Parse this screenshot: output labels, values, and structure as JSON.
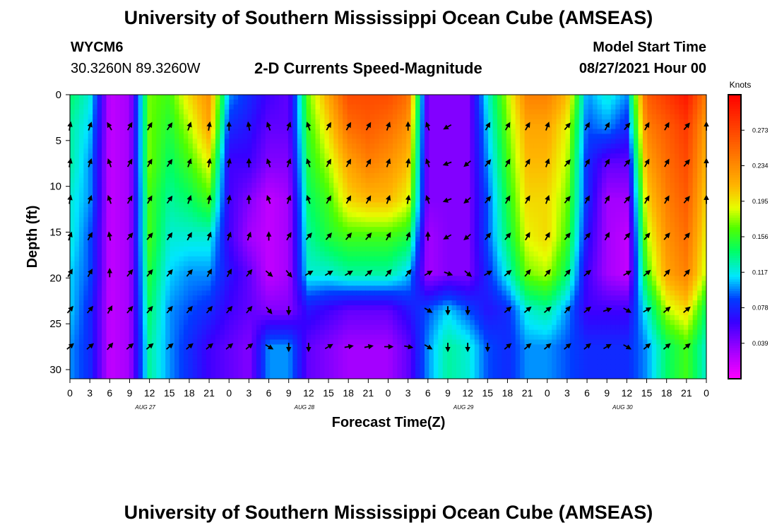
{
  "header": {
    "title_top": "University of Southern Mississippi Ocean Cube (AMSEAS)",
    "title_bottom": "University of Southern Mississippi Ocean Cube (AMSEAS)",
    "station": "WYCM6",
    "location": "30.3260N  89.3260W",
    "subtitle": "2-D Currents Speed-Magnitude",
    "model_label": "Model Start Time",
    "model_time": "08/27/2021 Hour 00"
  },
  "chart_data": {
    "type": "heatmap",
    "title": "2-D Currents Speed-Magnitude",
    "xlabel": "Forecast Time(Z)",
    "ylabel": "Depth (ft)",
    "colorbar_label": "Knots",
    "colorbar_ticks": [
      "0.273",
      "0.234",
      "0.195",
      "0.156",
      "0.117",
      "0.078",
      "0.039"
    ],
    "colorbar_values": [
      0.273,
      0.234,
      0.195,
      0.156,
      0.117,
      0.078,
      0.039
    ],
    "clim": [
      0.0,
      0.312
    ],
    "xlim": [
      0,
      96
    ],
    "ylim": [
      0,
      31
    ],
    "x_ticks": [
      0,
      3,
      6,
      9,
      12,
      15,
      18,
      21,
      24,
      27,
      30,
      33,
      36,
      39,
      42,
      45,
      48,
      51,
      54,
      57,
      60,
      63,
      66,
      69,
      72,
      75,
      78,
      81,
      84,
      87,
      90,
      93,
      96
    ],
    "x_tick_labels": [
      "0",
      "3",
      "6",
      "9",
      "12",
      "15",
      "18",
      "21",
      "0",
      "3",
      "6",
      "9",
      "12",
      "15",
      "18",
      "21",
      "0",
      "3",
      "6",
      "9",
      "12",
      "15",
      "18",
      "21",
      "0",
      "3",
      "6",
      "9",
      "12",
      "15",
      "18",
      "21",
      "0"
    ],
    "date_labels": [
      {
        "hour": 12,
        "text": "AUG 27"
      },
      {
        "hour": 36,
        "text": "AUG 28"
      },
      {
        "hour": 60,
        "text": "AUG 29"
      },
      {
        "hour": 84,
        "text": "AUG 30"
      }
    ],
    "y_ticks": [
      0,
      5,
      10,
      15,
      20,
      25,
      30
    ],
    "y_tick_labels": [
      "0",
      "5",
      "10",
      "15",
      "20",
      "25",
      "30"
    ],
    "column_hours": [
      0,
      3,
      6,
      9,
      12,
      15,
      18,
      21,
      24,
      27,
      30,
      33,
      36,
      39,
      42,
      45,
      48,
      51,
      54,
      57,
      60,
      63,
      66,
      69,
      72,
      75,
      78,
      81,
      84,
      87,
      90,
      93,
      96
    ],
    "row_depths_ft": [
      0,
      3.5,
      7.5,
      11.5,
      15.5,
      19.5,
      23.5,
      27.5,
      31
    ],
    "speed_knots": [
      [
        0.14,
        0.12,
        0.02,
        0.03,
        0.17,
        0.16,
        0.2,
        0.23,
        0.1,
        0.08,
        0.06,
        0.05,
        0.17,
        0.22,
        0.27,
        0.27,
        0.27,
        0.25,
        0.04,
        0.04,
        0.04,
        0.12,
        0.18,
        0.24,
        0.24,
        0.21,
        0.1,
        0.12,
        0.1,
        0.26,
        0.28,
        0.3,
        0.24
      ],
      [
        0.13,
        0.11,
        0.02,
        0.03,
        0.17,
        0.15,
        0.18,
        0.22,
        0.08,
        0.07,
        0.05,
        0.05,
        0.16,
        0.2,
        0.25,
        0.26,
        0.25,
        0.23,
        0.04,
        0.04,
        0.04,
        0.11,
        0.17,
        0.22,
        0.22,
        0.19,
        0.09,
        0.1,
        0.08,
        0.24,
        0.26,
        0.28,
        0.22
      ],
      [
        0.13,
        0.1,
        0.02,
        0.03,
        0.17,
        0.14,
        0.16,
        0.19,
        0.06,
        0.06,
        0.04,
        0.04,
        0.15,
        0.18,
        0.22,
        0.24,
        0.23,
        0.21,
        0.04,
        0.04,
        0.04,
        0.1,
        0.16,
        0.21,
        0.21,
        0.18,
        0.08,
        0.05,
        0.05,
        0.22,
        0.25,
        0.27,
        0.21
      ],
      [
        0.12,
        0.1,
        0.02,
        0.03,
        0.16,
        0.13,
        0.14,
        0.16,
        0.06,
        0.04,
        0.02,
        0.03,
        0.14,
        0.16,
        0.2,
        0.21,
        0.21,
        0.19,
        0.04,
        0.04,
        0.04,
        0.09,
        0.15,
        0.2,
        0.2,
        0.17,
        0.08,
        0.03,
        0.03,
        0.2,
        0.24,
        0.26,
        0.2
      ],
      [
        0.12,
        0.09,
        0.02,
        0.03,
        0.16,
        0.12,
        0.12,
        0.12,
        0.06,
        0.03,
        0.02,
        0.03,
        0.13,
        0.15,
        0.16,
        0.16,
        0.16,
        0.15,
        0.03,
        0.04,
        0.04,
        0.09,
        0.14,
        0.19,
        0.2,
        0.16,
        0.07,
        0.03,
        0.02,
        0.18,
        0.23,
        0.25,
        0.19
      ],
      [
        0.11,
        0.09,
        0.02,
        0.03,
        0.15,
        0.11,
        0.1,
        0.1,
        0.07,
        0.05,
        0.02,
        0.03,
        0.12,
        0.12,
        0.13,
        0.13,
        0.13,
        0.11,
        0.03,
        0.04,
        0.04,
        0.08,
        0.12,
        0.17,
        0.18,
        0.14,
        0.06,
        0.03,
        0.02,
        0.16,
        0.22,
        0.24,
        0.18
      ],
      [
        0.11,
        0.08,
        0.02,
        0.03,
        0.14,
        0.1,
        0.09,
        0.08,
        0.06,
        0.05,
        0.04,
        0.04,
        0.07,
        0.06,
        0.05,
        0.05,
        0.05,
        0.07,
        0.09,
        0.11,
        0.09,
        0.07,
        0.08,
        0.12,
        0.13,
        0.1,
        0.06,
        0.06,
        0.06,
        0.12,
        0.18,
        0.2,
        0.14
      ],
      [
        0.1,
        0.08,
        0.02,
        0.03,
        0.13,
        0.1,
        0.08,
        0.06,
        0.05,
        0.04,
        0.1,
        0.1,
        0.05,
        0.04,
        0.03,
        0.03,
        0.03,
        0.05,
        0.1,
        0.13,
        0.12,
        0.09,
        0.08,
        0.1,
        0.1,
        0.09,
        0.08,
        0.08,
        0.08,
        0.1,
        0.14,
        0.16,
        0.12
      ],
      [
        0.1,
        0.08,
        0.02,
        0.03,
        0.13,
        0.1,
        0.08,
        0.06,
        0.05,
        0.04,
        0.1,
        0.1,
        0.05,
        0.04,
        0.03,
        0.03,
        0.03,
        0.05,
        0.1,
        0.13,
        0.12,
        0.09,
        0.08,
        0.1,
        0.1,
        0.09,
        0.08,
        0.08,
        0.08,
        0.1,
        0.14,
        0.16,
        0.12
      ]
    ],
    "arrow_hours": [
      0,
      3,
      6,
      9,
      12,
      15,
      18,
      21,
      24,
      27,
      30,
      33,
      36,
      39,
      42,
      45,
      48,
      51,
      54,
      57,
      60,
      63,
      66,
      69,
      72,
      75,
      78,
      81,
      84,
      87,
      90,
      93,
      96
    ],
    "arrow_depths_ft": [
      3.5,
      7.5,
      11.5,
      15.5,
      19.5,
      23.5,
      27.5
    ],
    "arrow_direction_deg": [
      [
        10,
        20,
        -30,
        30,
        30,
        35,
        20,
        10,
        0,
        -10,
        -20,
        20,
        -20,
        30,
        30,
        30,
        20,
        0,
        -20,
        -120,
        null,
        30,
        30,
        30,
        20,
        40,
        30,
        30,
        40,
        30,
        30,
        40,
        0
      ],
      [
        10,
        20,
        -20,
        30,
        30,
        35,
        20,
        10,
        10,
        0,
        -20,
        20,
        -20,
        30,
        30,
        30,
        20,
        10,
        -20,
        -110,
        -130,
        40,
        30,
        30,
        20,
        40,
        30,
        30,
        40,
        30,
        30,
        40,
        0
      ],
      [
        10,
        20,
        -20,
        30,
        30,
        35,
        20,
        10,
        10,
        0,
        -20,
        20,
        -20,
        30,
        30,
        30,
        20,
        10,
        -20,
        -110,
        -130,
        40,
        30,
        30,
        20,
        40,
        30,
        30,
        40,
        30,
        30,
        40,
        0
      ],
      [
        20,
        30,
        -10,
        40,
        40,
        35,
        30,
        20,
        20,
        20,
        0,
        30,
        40,
        40,
        40,
        40,
        30,
        20,
        0,
        -120,
        -130,
        40,
        40,
        30,
        30,
        40,
        40,
        30,
        40,
        40,
        40,
        40,
        null
      ],
      [
        30,
        30,
        0,
        40,
        40,
        40,
        40,
        30,
        30,
        40,
        130,
        140,
        60,
        60,
        60,
        50,
        40,
        40,
        60,
        110,
        130,
        60,
        50,
        40,
        40,
        40,
        50,
        null,
        60,
        50,
        40,
        40,
        null
      ],
      [
        40,
        40,
        30,
        40,
        40,
        40,
        40,
        40,
        40,
        40,
        140,
        180,
        null,
        null,
        null,
        null,
        null,
        null,
        120,
        180,
        180,
        null,
        50,
        50,
        50,
        40,
        50,
        70,
        120,
        60,
        50,
        50,
        null
      ],
      [
        50,
        50,
        40,
        50,
        50,
        50,
        50,
        50,
        50,
        50,
        120,
        180,
        180,
        60,
        80,
        80,
        90,
        100,
        120,
        180,
        180,
        180,
        50,
        50,
        50,
        50,
        50,
        60,
        120,
        50,
        50,
        50,
        null
      ]
    ]
  }
}
